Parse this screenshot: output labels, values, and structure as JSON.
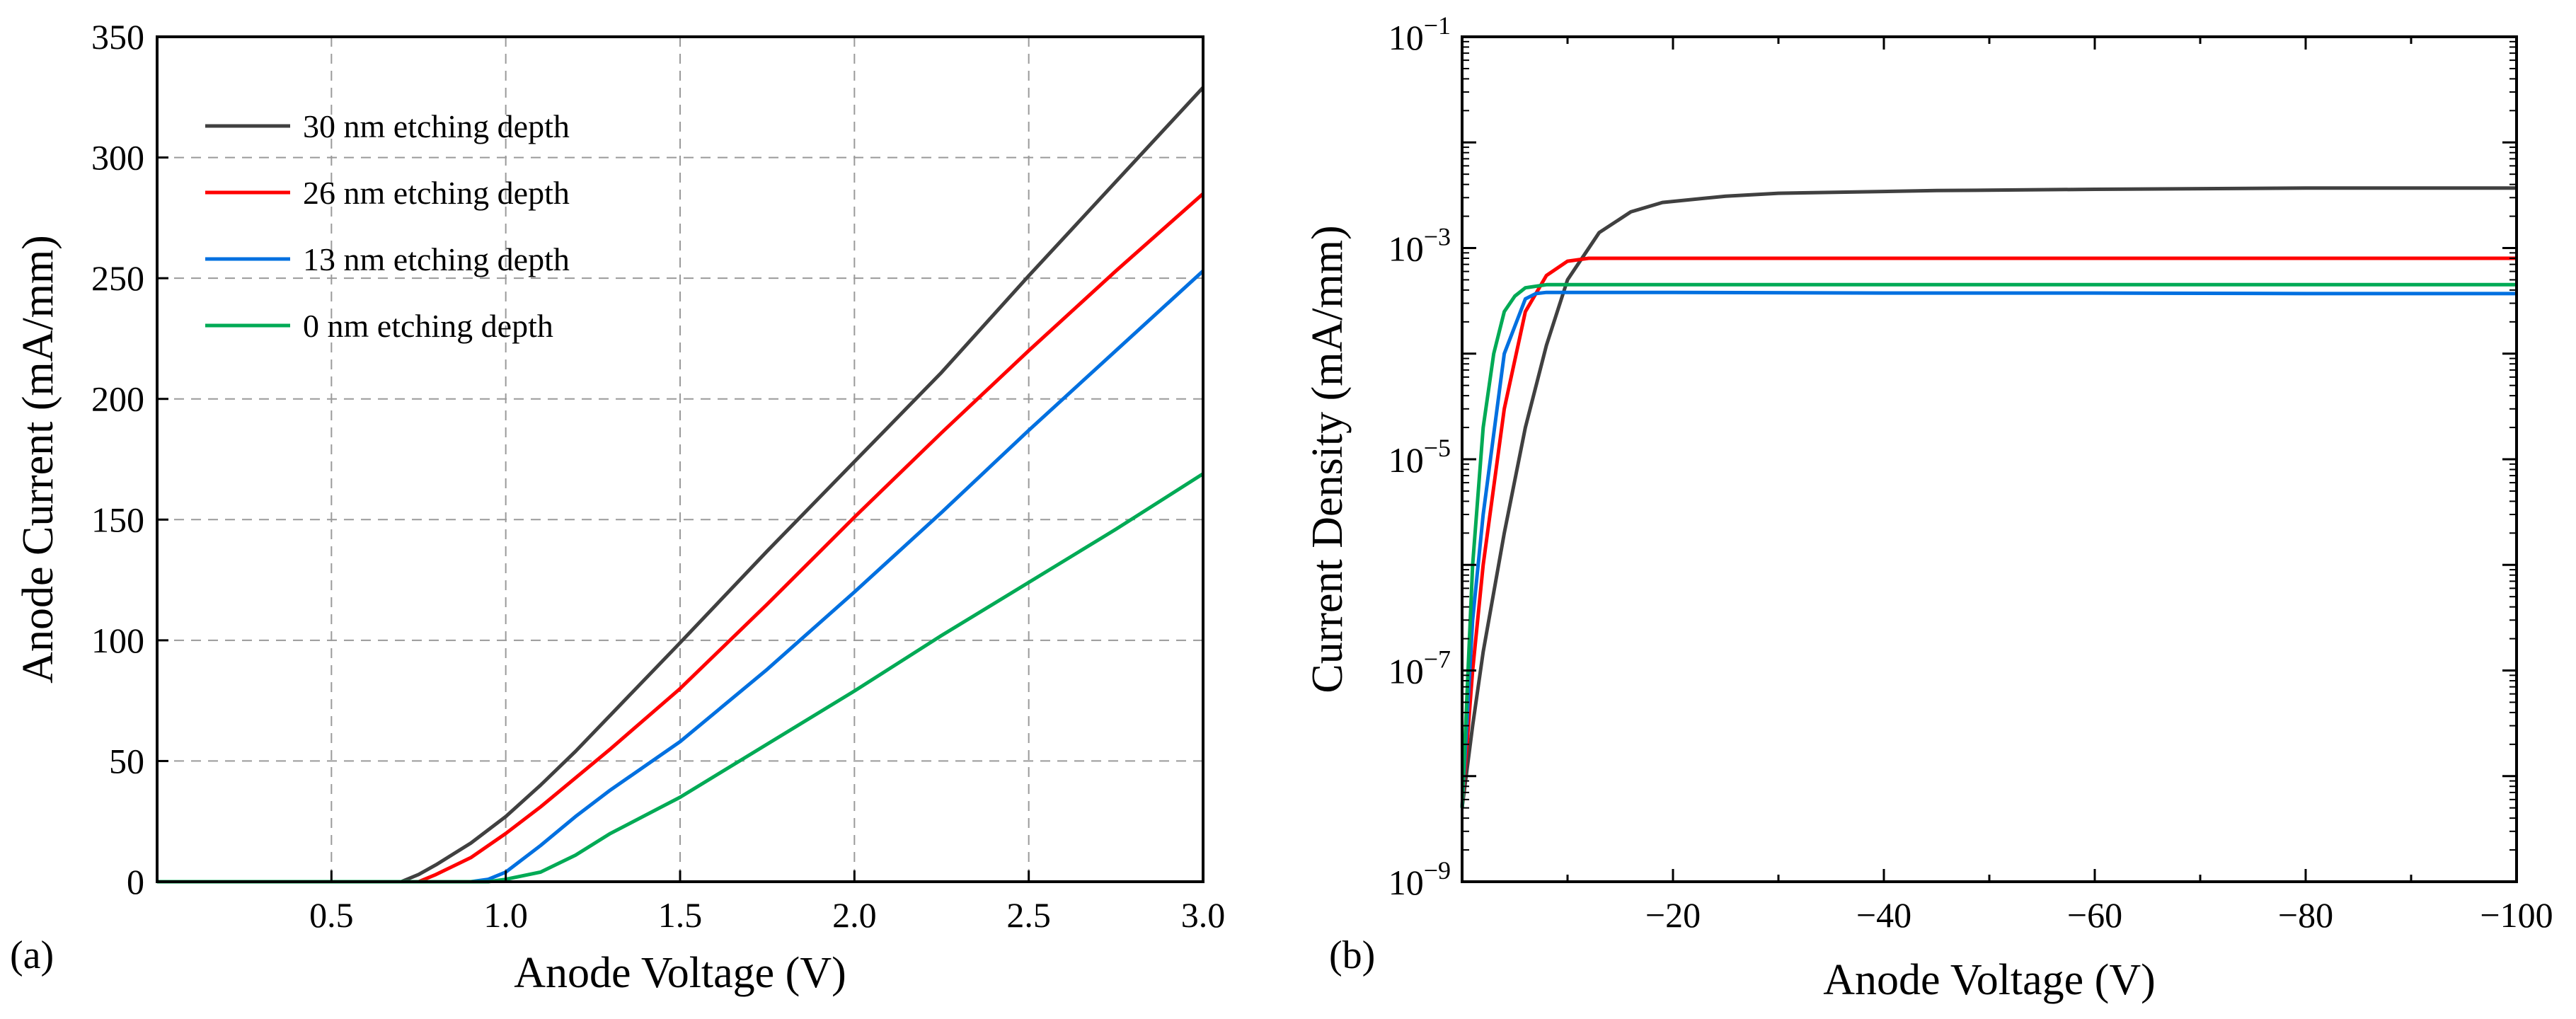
{
  "chart_data": [
    {
      "panel": "(a)",
      "type": "line",
      "xlabel": "Anode Voltage (V)",
      "ylabel": "Anode Current (mA/mm)",
      "xlim": [
        0,
        3.0
      ],
      "ylim": [
        0,
        350
      ],
      "xticks": [
        0.5,
        1.0,
        1.5,
        2.0,
        2.5,
        3.0
      ],
      "xtick_labels": [
        "0.5",
        "1.0",
        "1.5",
        "2.0",
        "2.5",
        "3.0"
      ],
      "yticks": [
        0,
        50,
        100,
        150,
        200,
        250,
        300,
        350
      ],
      "ytick_labels": [
        "0",
        "50",
        "100",
        "150",
        "200",
        "250",
        "300",
        "350"
      ],
      "grid": true,
      "legend_position": "top-left",
      "series": [
        {
          "name": "30 nm etching depth",
          "color": "#404040",
          "x": [
            0,
            0.5,
            0.7,
            0.75,
            0.8,
            0.9,
            1.0,
            1.1,
            1.2,
            1.3,
            1.5,
            1.75,
            2.0,
            2.25,
            2.5,
            2.75,
            3.0
          ],
          "y": [
            0,
            0,
            0,
            3,
            7,
            16,
            27,
            40,
            54,
            69,
            99,
            137,
            174,
            211,
            251,
            290,
            329
          ]
        },
        {
          "name": "26 nm etching depth",
          "color": "#ff0000",
          "x": [
            0,
            0.5,
            0.75,
            0.8,
            0.9,
            1.0,
            1.1,
            1.2,
            1.3,
            1.5,
            1.75,
            2.0,
            2.25,
            2.5,
            2.75,
            3.0
          ],
          "y": [
            0,
            0,
            0,
            3,
            10,
            20,
            31,
            43,
            55,
            80,
            115,
            151,
            186,
            220,
            253,
            285
          ]
        },
        {
          "name": "13 nm etching depth",
          "color": "#0070e0",
          "x": [
            0,
            0.5,
            0.9,
            0.95,
            1.0,
            1.1,
            1.2,
            1.3,
            1.5,
            1.75,
            2.0,
            2.25,
            2.5,
            2.75,
            3.0
          ],
          "y": [
            0,
            0,
            0,
            1,
            4,
            15,
            27,
            38,
            58,
            88,
            120,
            153,
            187,
            220,
            253
          ]
        },
        {
          "name": "0   nm etching depth",
          "color": "#00aa55",
          "x": [
            0,
            0.5,
            0.95,
            1.0,
            1.1,
            1.2,
            1.3,
            1.5,
            1.75,
            2.0,
            2.25,
            2.5,
            2.75,
            3.0
          ],
          "y": [
            0,
            0,
            0,
            1,
            4,
            11,
            20,
            35,
            57,
            79,
            102,
            124,
            146,
            169
          ]
        }
      ]
    },
    {
      "panel": "(b)",
      "type": "line",
      "xlabel": "Anode Voltage (V)",
      "ylabel": "Current Density (mA/mm)",
      "xlim": [
        0,
        -100
      ],
      "ylim": [
        1e-09,
        0.1
      ],
      "yscale": "log",
      "xticks": [
        -20,
        -40,
        -60,
        -80,
        -100
      ],
      "xtick_labels": [
        "−20",
        "−40",
        "−60",
        "−80",
        "−100"
      ],
      "ytick_exponents": [
        -9,
        -7,
        -5,
        -3,
        -1
      ],
      "ytick_base": "10",
      "ytick_labels": [
        "−9",
        "−7",
        "−5",
        "−3",
        "−1"
      ],
      "grid": false,
      "series": [
        {
          "name": "30 nm etching depth",
          "color": "#404040",
          "x": [
            0,
            -1,
            -2,
            -4,
            -6,
            -8,
            -10,
            -13,
            -16,
            -19,
            -25,
            -30,
            -45,
            -60,
            -80,
            -100
          ],
          "y": [
            5e-09,
            3e-08,
            1.5e-07,
            2e-06,
            2e-05,
            0.00012,
            0.0005,
            0.0014,
            0.0022,
            0.0027,
            0.0031,
            0.0033,
            0.0035,
            0.0036,
            0.0037,
            0.0037
          ]
        },
        {
          "name": "26 nm etching depth",
          "color": "#ff0000",
          "x": [
            0,
            -1,
            -2,
            -4,
            -6,
            -8,
            -10,
            -12,
            -20,
            -40,
            -60,
            -80,
            -100
          ],
          "y": [
            5e-09,
            1e-07,
            1e-06,
            3e-05,
            0.00025,
            0.00055,
            0.00075,
            0.0008,
            0.0008,
            0.0008,
            0.0008,
            0.0008,
            0.0008
          ]
        },
        {
          "name": "13 nm etching depth",
          "color": "#0070e0",
          "x": [
            0,
            -1,
            -2,
            -4,
            -6,
            -7,
            -8,
            -20,
            -40,
            -60,
            -80,
            -100
          ],
          "y": [
            5e-09,
            3e-07,
            3e-06,
            0.0001,
            0.00033,
            0.00037,
            0.00038,
            0.00038,
            0.000375,
            0.000375,
            0.00037,
            0.00037
          ]
        },
        {
          "name": "0   nm etching depth",
          "color": "#00aa55",
          "x": [
            0,
            -1,
            -2,
            -3,
            -4,
            -5,
            -6,
            -8,
            -20,
            -40,
            -60,
            -80,
            -100
          ],
          "y": [
            5e-09,
            1e-06,
            2e-05,
            0.0001,
            0.00025,
            0.00035,
            0.00042,
            0.00045,
            0.00045,
            0.00045,
            0.00045,
            0.00045,
            0.00045
          ]
        }
      ]
    }
  ]
}
